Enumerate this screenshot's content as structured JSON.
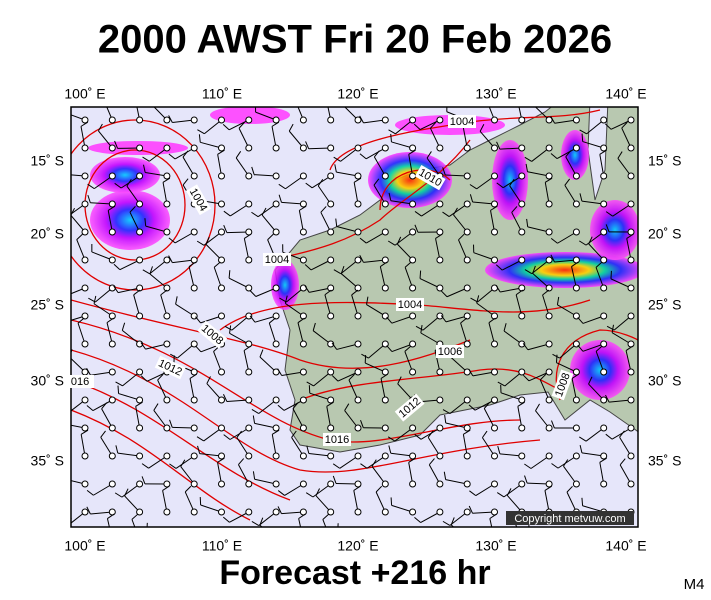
{
  "header": {
    "title": "2000 AWST Fri 20 Feb 2026"
  },
  "map": {
    "lon_labels": [
      "100˚ E",
      "110˚ E",
      "120˚ E",
      "130˚ E",
      "140˚ E"
    ],
    "lat_labels": [
      "15˚ S",
      "20˚ S",
      "25˚ S",
      "30˚ S",
      "35˚ S"
    ],
    "isobar_labels": [
      "1004",
      "1010",
      "1004",
      "1004",
      "1008",
      "1012",
      "016",
      "1004",
      "1006",
      "1012",
      "1016",
      "1008"
    ],
    "copyright": "Copyright metvuw.com"
  },
  "footer": {
    "forecast": "Forecast +216 hr",
    "model": "M4"
  }
}
